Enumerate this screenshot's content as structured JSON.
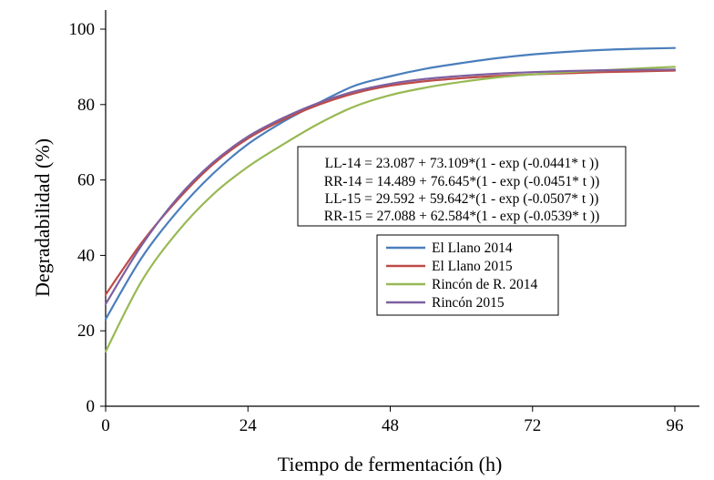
{
  "chart_data": {
    "type": "line",
    "xlabel": "Tiempo de fermentación (h)",
    "ylabel": "Degradabilidad (%)",
    "xlim": [
      0,
      96
    ],
    "ylim": [
      0,
      100
    ],
    "xticks": [
      0,
      24,
      48,
      72,
      96
    ],
    "yticks": [
      0,
      20,
      40,
      60,
      80,
      100
    ],
    "grid": false,
    "equations": [
      "LL-14 =  23.087 + 73.109*(1 - exp (-0.0441* t ))",
      "RR-14 = 14.489 + 76.645*(1 - exp (-0.0451* t ))",
      "LL-15 =  29.592 + 59.642*(1 - exp (-0.0507* t ))",
      "RR-15 = 27.088 + 62.584*(1 - exp (-0.0539* t ))"
    ],
    "legend_position": "center-right",
    "series": [
      {
        "name": "El Llano 2014",
        "color": "#4a7ebb",
        "x": [
          0,
          6,
          12,
          18,
          24,
          30,
          36,
          42,
          48,
          54,
          60,
          66,
          72,
          78,
          84,
          90,
          96
        ],
        "y": [
          23.1,
          39.2,
          51.5,
          61.5,
          69.5,
          75.5,
          80.5,
          85.0,
          87.5,
          89.5,
          91.0,
          92.3,
          93.3,
          94.0,
          94.5,
          94.8,
          95.0
        ]
      },
      {
        "name": "El Llano 2015",
        "color": "#be4b48",
        "x": [
          0,
          6,
          12,
          18,
          24,
          30,
          36,
          42,
          48,
          54,
          60,
          66,
          72,
          78,
          84,
          90,
          96
        ],
        "y": [
          29.6,
          43.2,
          54.5,
          64.0,
          71.0,
          76.0,
          80.0,
          83.0,
          85.0,
          86.2,
          87.0,
          87.6,
          88.0,
          88.3,
          88.6,
          88.8,
          89.0
        ]
      },
      {
        "name": "Rincón de R. 2014",
        "color": "#98b954",
        "x": [
          0,
          6,
          12,
          18,
          24,
          30,
          36,
          42,
          48,
          54,
          60,
          66,
          72,
          78,
          84,
          90,
          96
        ],
        "y": [
          14.5,
          33.0,
          46.0,
          56.0,
          63.5,
          69.5,
          75.0,
          79.5,
          82.5,
          84.5,
          86.0,
          87.2,
          88.0,
          88.6,
          89.1,
          89.6,
          90.0
        ]
      },
      {
        "name": "Rincón 2015",
        "color": "#7d60a0",
        "x": [
          0,
          6,
          12,
          18,
          24,
          30,
          36,
          42,
          48,
          54,
          60,
          66,
          72,
          78,
          84,
          90,
          96
        ],
        "y": [
          27.1,
          42.5,
          55.0,
          64.5,
          71.5,
          76.5,
          80.5,
          83.5,
          85.5,
          86.8,
          87.6,
          88.2,
          88.6,
          88.9,
          89.1,
          89.2,
          89.3
        ]
      }
    ]
  }
}
